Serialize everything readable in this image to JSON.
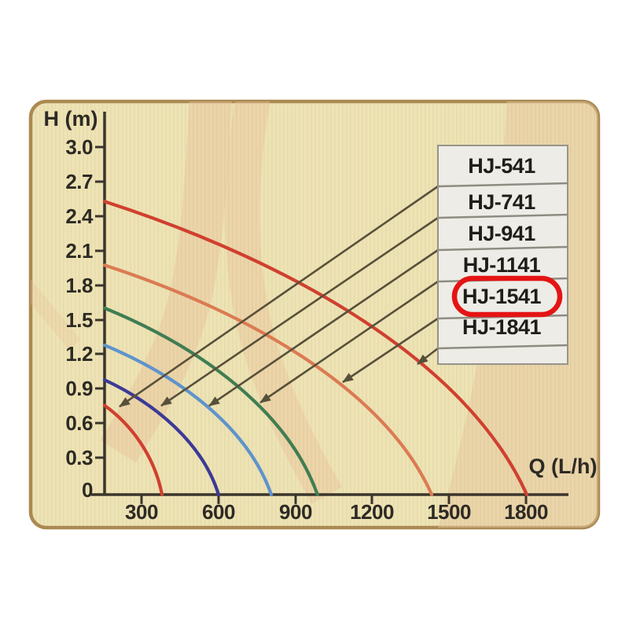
{
  "figure": {
    "panel_background": "#ede3b4",
    "panel_border_color": "#ab8a52",
    "watermark_color": "#ecc29b",
    "highlight_ring_color": "#e41414",
    "arrow_color": "#57503a",
    "axis_color": "#3b352c"
  },
  "chart_data": {
    "type": "line",
    "xlabel": "Q (L/h)",
    "ylabel": "H (m)",
    "x_ticks": [
      "300",
      "600",
      "900",
      "1200",
      "1500",
      "1800"
    ],
    "y_ticks": [
      "3.0",
      "2.7",
      "2.4",
      "2.1",
      "1.8",
      "1.5",
      "1.2",
      "0.9",
      "0.6",
      "0.3",
      "0"
    ],
    "xlim": [
      0,
      1950
    ],
    "ylim": [
      0,
      3.2
    ],
    "grid": false,
    "legend_position": "upper right",
    "highlighted_entry": "HJ-1541",
    "series": [
      {
        "name": "HJ-541",
        "color": "#d0402f",
        "max_head_m": 0.77,
        "max_flow_lh": 380,
        "highlighted": false
      },
      {
        "name": "HJ-741",
        "color": "#3c3a96",
        "max_head_m": 0.99,
        "max_flow_lh": 600,
        "highlighted": false
      },
      {
        "name": "HJ-941",
        "color": "#5f93cc",
        "max_head_m": 1.29,
        "max_flow_lh": 805,
        "highlighted": false
      },
      {
        "name": "HJ-1141",
        "color": "#417d52",
        "max_head_m": 1.61,
        "max_flow_lh": 985,
        "highlighted": false
      },
      {
        "name": "HJ-1541",
        "color": "#db7b52",
        "max_head_m": 1.98,
        "max_flow_lh": 1430,
        "highlighted": true
      },
      {
        "name": "HJ-1841",
        "color": "#d0402f",
        "max_head_m": 2.53,
        "max_flow_lh": 1800,
        "highlighted": false
      }
    ]
  }
}
